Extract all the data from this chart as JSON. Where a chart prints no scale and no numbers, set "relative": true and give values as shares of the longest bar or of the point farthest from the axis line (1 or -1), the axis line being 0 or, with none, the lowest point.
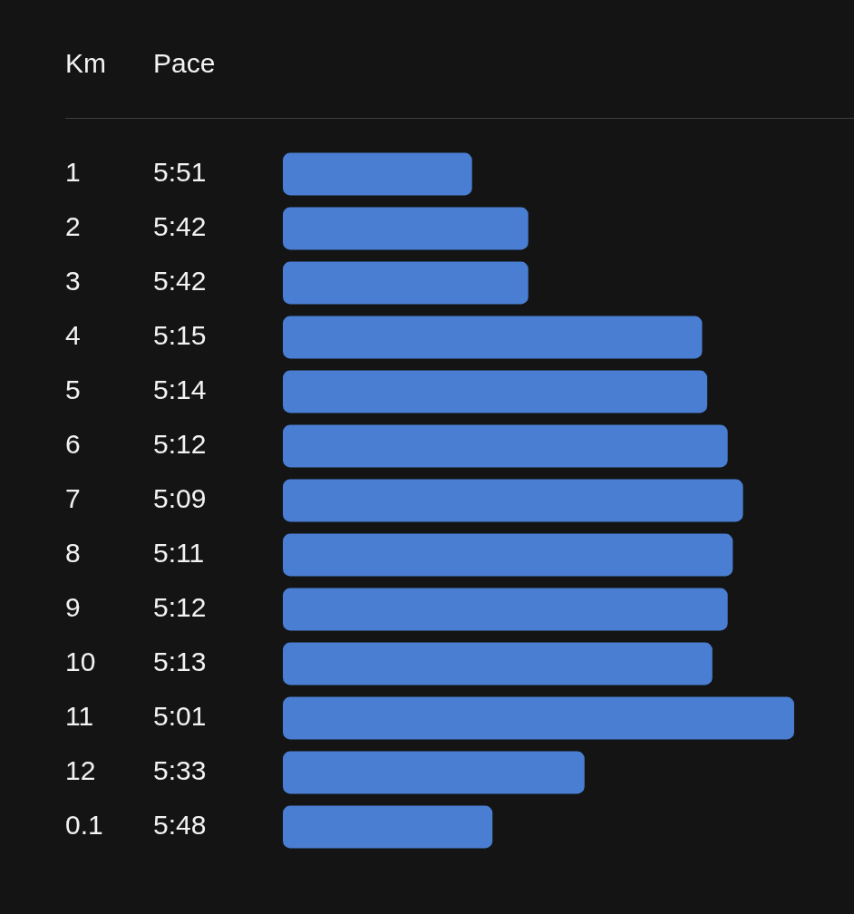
{
  "chart_data": {
    "type": "bar",
    "orientation": "horizontal",
    "relative": true,
    "ylabel": "Km",
    "xlabel": "Pace",
    "categories": [
      "1",
      "2",
      "3",
      "4",
      "5",
      "6",
      "7",
      "8",
      "9",
      "10",
      "11",
      "12",
      "0.1"
    ],
    "values": [
      0.37,
      0.48,
      0.48,
      0.82,
      0.83,
      0.87,
      0.9,
      0.88,
      0.87,
      0.84,
      1,
      0.59,
      0.41
    ],
    "annotations": [
      "5:51",
      "5:42",
      "5:42",
      "5:15",
      "5:14",
      "5:12",
      "5:09",
      "5:11",
      "5:12",
      "5:13",
      "5:01",
      "5:33",
      "5:48"
    ],
    "color": "#497ed3"
  }
}
